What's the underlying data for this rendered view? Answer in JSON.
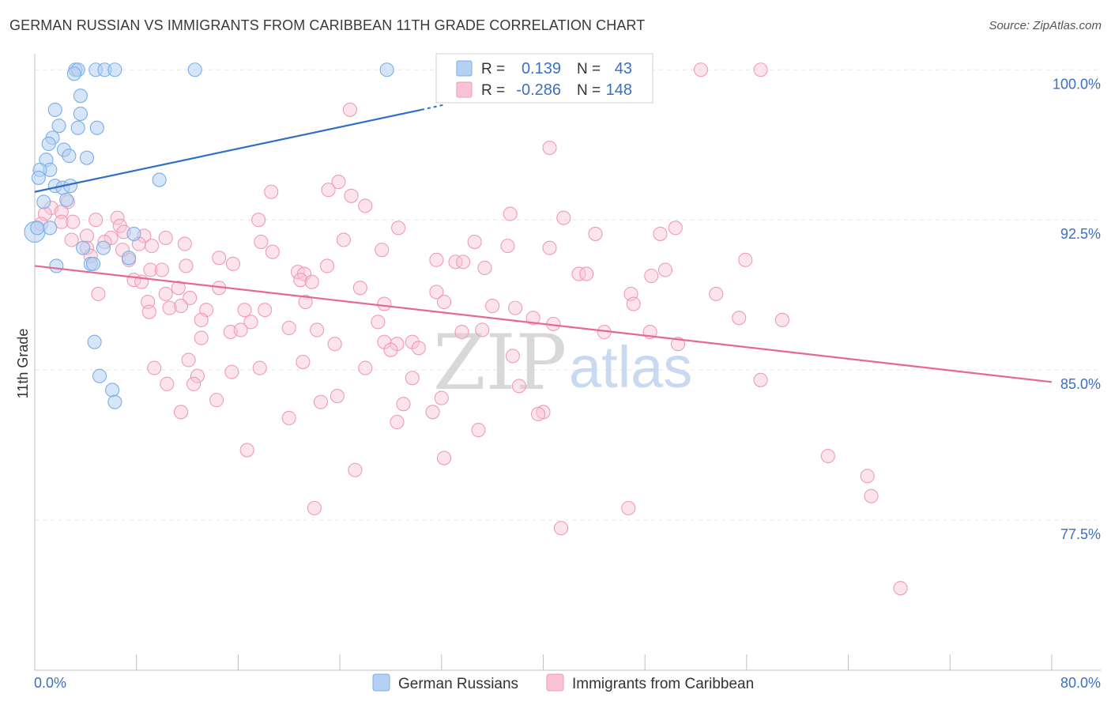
{
  "title": "GERMAN RUSSIAN VS IMMIGRANTS FROM CARIBBEAN 11TH GRADE CORRELATION CHART",
  "source": "Source: ZipAtlas.com",
  "colors": {
    "blue": "#7aaee8",
    "blue_fill": "#b5d0f2",
    "pink": "#f09ab7",
    "pink_fill": "#f8c3d5",
    "blue_line": "#2f6fc6",
    "pink_line": "#e46a95",
    "tick_text": "#3b6fc2"
  },
  "legend": {
    "r_label": "R =",
    "n_label": "N =",
    "series": [
      {
        "r": "0.139",
        "n": "43"
      },
      {
        "r": "-0.286",
        "n": "148"
      }
    ]
  },
  "watermark": {
    "zip": "ZIP",
    "atlas": "atlas"
  },
  "chart_data": {
    "type": "scatter",
    "ylabel": "11th Grade",
    "xlim": [
      0,
      80
    ],
    "ylim": [
      70,
      100.8
    ],
    "y_ticks": [
      {
        "value": 100,
        "label": "100.0%"
      },
      {
        "value": 92.5,
        "label": "92.5%"
      },
      {
        "value": 85,
        "label": "85.0%"
      },
      {
        "value": 77.5,
        "label": "77.5%"
      }
    ],
    "x_labels": {
      "min": "0.0%",
      "max": "80.0%"
    },
    "series": [
      {
        "name": "German Russians",
        "trend": {
          "x1": 0,
          "y1": 93.9,
          "x2": 30.4,
          "y2": 98.0
        },
        "points": [
          [
            3.2,
            100.0
          ],
          [
            3.4,
            100.0
          ],
          [
            4.8,
            100.0
          ],
          [
            5.5,
            100.0
          ],
          [
            6.3,
            100.0
          ],
          [
            12.6,
            100.0
          ],
          [
            27.7,
            100.0
          ],
          [
            3.1,
            99.8
          ],
          [
            3.6,
            98.7
          ],
          [
            1.6,
            98.0
          ],
          [
            3.6,
            97.8
          ],
          [
            1.9,
            97.2
          ],
          [
            3.4,
            97.1
          ],
          [
            4.9,
            97.1
          ],
          [
            1.4,
            96.6
          ],
          [
            1.1,
            96.3
          ],
          [
            2.3,
            96.0
          ],
          [
            2.7,
            95.7
          ],
          [
            4.1,
            95.6
          ],
          [
            0.9,
            95.5
          ],
          [
            1.2,
            95.0
          ],
          [
            0.4,
            95.0
          ],
          [
            0.3,
            94.6
          ],
          [
            9.8,
            94.5
          ],
          [
            1.6,
            94.2
          ],
          [
            2.2,
            94.1
          ],
          [
            2.8,
            94.2
          ],
          [
            2.5,
            93.5
          ],
          [
            0.7,
            93.4
          ],
          [
            0.0,
            91.9
          ],
          [
            0.2,
            92.1
          ],
          [
            1.2,
            92.1
          ],
          [
            7.8,
            91.8
          ],
          [
            5.4,
            91.1
          ],
          [
            3.8,
            91.1
          ],
          [
            7.4,
            90.6
          ],
          [
            4.4,
            90.3
          ],
          [
            4.6,
            90.3
          ],
          [
            1.7,
            90.2
          ],
          [
            4.7,
            86.4
          ],
          [
            5.1,
            84.7
          ],
          [
            6.1,
            84.0
          ],
          [
            6.3,
            83.4
          ]
        ]
      },
      {
        "name": "Immigrants from Caribbean",
        "trend": {
          "x1": 0,
          "y1": 90.2,
          "x2": 80,
          "y2": 84.4
        },
        "points": [
          [
            52.4,
            100.0
          ],
          [
            57.1,
            100.0
          ],
          [
            24.8,
            98.0
          ],
          [
            40.5,
            96.1
          ],
          [
            23.9,
            94.4
          ],
          [
            23.1,
            94.0
          ],
          [
            18.6,
            93.9
          ],
          [
            24.9,
            93.7
          ],
          [
            26.0,
            93.2
          ],
          [
            2.6,
            93.4
          ],
          [
            1.3,
            93.1
          ],
          [
            2.1,
            92.9
          ],
          [
            0.8,
            92.8
          ],
          [
            37.4,
            92.8
          ],
          [
            41.6,
            92.6
          ],
          [
            6.5,
            92.6
          ],
          [
            4.8,
            92.5
          ],
          [
            2.1,
            92.4
          ],
          [
            3.0,
            92.4
          ],
          [
            17.6,
            92.5
          ],
          [
            0.5,
            92.3
          ],
          [
            6.7,
            92.2
          ],
          [
            28.6,
            92.1
          ],
          [
            50.4,
            92.1
          ],
          [
            49.2,
            91.8
          ],
          [
            7.0,
            91.9
          ],
          [
            8.6,
            91.7
          ],
          [
            10.3,
            91.6
          ],
          [
            4.1,
            91.7
          ],
          [
            2.9,
            91.5
          ],
          [
            6.0,
            91.6
          ],
          [
            44.1,
            91.8
          ],
          [
            5.5,
            91.4
          ],
          [
            24.3,
            91.5
          ],
          [
            17.8,
            91.4
          ],
          [
            34.6,
            91.4
          ],
          [
            8.2,
            91.3
          ],
          [
            9.2,
            91.2
          ],
          [
            4.1,
            91.1
          ],
          [
            37.2,
            91.2
          ],
          [
            40.5,
            91.1
          ],
          [
            6.9,
            91.0
          ],
          [
            27.3,
            91.0
          ],
          [
            18.7,
            90.9
          ],
          [
            11.8,
            91.3
          ],
          [
            4.4,
            90.7
          ],
          [
            7.4,
            90.5
          ],
          [
            14.5,
            90.6
          ],
          [
            31.6,
            90.5
          ],
          [
            55.9,
            90.5
          ],
          [
            33.1,
            90.4
          ],
          [
            33.7,
            90.4
          ],
          [
            23.0,
            90.2
          ],
          [
            15.6,
            90.3
          ],
          [
            11.9,
            90.2
          ],
          [
            9.1,
            90.0
          ],
          [
            35.4,
            90.1
          ],
          [
            49.6,
            90.0
          ],
          [
            10.0,
            90.0
          ],
          [
            20.7,
            89.9
          ],
          [
            21.2,
            89.8
          ],
          [
            42.8,
            89.8
          ],
          [
            43.4,
            89.8
          ],
          [
            48.5,
            89.7
          ],
          [
            20.9,
            89.5
          ],
          [
            21.8,
            89.4
          ],
          [
            7.8,
            89.5
          ],
          [
            8.4,
            89.4
          ],
          [
            11.3,
            89.1
          ],
          [
            14.5,
            89.1
          ],
          [
            25.6,
            89.1
          ],
          [
            31.6,
            88.9
          ],
          [
            5.0,
            88.8
          ],
          [
            46.9,
            88.8
          ],
          [
            53.6,
            88.8
          ],
          [
            10.3,
            88.8
          ],
          [
            12.2,
            88.6
          ],
          [
            8.9,
            88.4
          ],
          [
            21.3,
            88.4
          ],
          [
            32.2,
            88.4
          ],
          [
            47.1,
            88.3
          ],
          [
            11.5,
            88.2
          ],
          [
            27.5,
            88.3
          ],
          [
            36.0,
            88.2
          ],
          [
            37.8,
            88.1
          ],
          [
            13.5,
            88.0
          ],
          [
            16.5,
            88.0
          ],
          [
            18.1,
            88.0
          ],
          [
            10.6,
            88.1
          ],
          [
            9.0,
            87.9
          ],
          [
            39.2,
            87.6
          ],
          [
            40.8,
            87.3
          ],
          [
            27.0,
            87.4
          ],
          [
            13.1,
            87.5
          ],
          [
            17.0,
            87.4
          ],
          [
            55.4,
            87.6
          ],
          [
            58.8,
            87.5
          ],
          [
            20.0,
            87.1
          ],
          [
            22.2,
            87.0
          ],
          [
            15.4,
            86.9
          ],
          [
            16.2,
            87.0
          ],
          [
            35.2,
            87.0
          ],
          [
            33.6,
            86.9
          ],
          [
            44.8,
            86.9
          ],
          [
            48.4,
            86.9
          ],
          [
            13.1,
            86.6
          ],
          [
            27.5,
            86.4
          ],
          [
            28.5,
            86.3
          ],
          [
            29.7,
            86.4
          ],
          [
            23.6,
            86.3
          ],
          [
            28.0,
            86.0
          ],
          [
            30.2,
            86.1
          ],
          [
            50.6,
            86.3
          ],
          [
            12.1,
            85.5
          ],
          [
            37.6,
            85.7
          ],
          [
            21.1,
            85.4
          ],
          [
            9.4,
            85.1
          ],
          [
            26.0,
            85.1
          ],
          [
            17.7,
            85.1
          ],
          [
            15.5,
            84.9
          ],
          [
            12.8,
            84.7
          ],
          [
            29.7,
            84.6
          ],
          [
            57.1,
            84.5
          ],
          [
            10.4,
            84.3
          ],
          [
            12.5,
            84.3
          ],
          [
            38.1,
            84.2
          ],
          [
            23.8,
            83.7
          ],
          [
            32.0,
            83.6
          ],
          [
            14.3,
            83.5
          ],
          [
            22.5,
            83.4
          ],
          [
            29.0,
            83.3
          ],
          [
            11.5,
            82.9
          ],
          [
            40.0,
            82.9
          ],
          [
            31.3,
            82.9
          ],
          [
            39.6,
            82.8
          ],
          [
            20.0,
            82.6
          ],
          [
            28.5,
            82.4
          ],
          [
            34.9,
            82.0
          ],
          [
            16.7,
            81.0
          ],
          [
            32.2,
            80.6
          ],
          [
            62.4,
            80.7
          ],
          [
            25.2,
            80.0
          ],
          [
            65.5,
            79.7
          ],
          [
            65.8,
            78.7
          ],
          [
            22.0,
            78.1
          ],
          [
            46.7,
            78.1
          ],
          [
            41.4,
            77.1
          ],
          [
            68.1,
            74.1
          ]
        ]
      }
    ]
  }
}
